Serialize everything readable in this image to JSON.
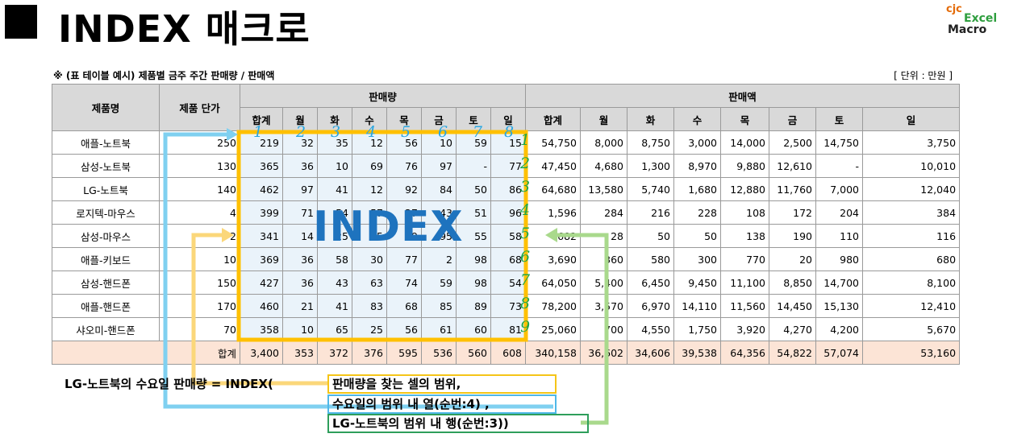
{
  "title": "INDEX 매크로",
  "logo": {
    "cjc": "cjc",
    "excel": "Excel",
    "macro": "Macro"
  },
  "caption": "※ (표 테이블 예시) 제품별 금주 주간 판매량 / 판매액",
  "unit": "[ 단위 : 만원 ]",
  "headers": {
    "product": "제품명",
    "price": "제품 단가",
    "qty_group": "판매량",
    "amt_group": "판매액",
    "qty_cols": [
      "합계",
      "월",
      "화",
      "수",
      "목",
      "금",
      "토",
      "일"
    ],
    "amt_cols": [
      "합계",
      "월",
      "화",
      "수",
      "목",
      "금",
      "토",
      "일"
    ]
  },
  "rows": [
    {
      "name": "애플-노트북",
      "price": "250",
      "qty": [
        "219",
        "32",
        "35",
        "12",
        "56",
        "10",
        "59",
        "15"
      ],
      "amt": [
        "54,750",
        "8,000",
        "8,750",
        "3,000",
        "14,000",
        "2,500",
        "14,750",
        "3,750"
      ]
    },
    {
      "name": "삼성-노트북",
      "price": "130",
      "qty": [
        "365",
        "36",
        "10",
        "69",
        "76",
        "97",
        "-",
        "77"
      ],
      "amt": [
        "47,450",
        "4,680",
        "1,300",
        "8,970",
        "9,880",
        "12,610",
        "-",
        "10,010"
      ]
    },
    {
      "name": "LG-노트북",
      "price": "140",
      "qty": [
        "462",
        "97",
        "41",
        "12",
        "92",
        "84",
        "50",
        "86"
      ],
      "amt": [
        "64,680",
        "13,580",
        "5,740",
        "1,680",
        "12,880",
        "11,760",
        "7,000",
        "12,040"
      ]
    },
    {
      "name": "로지텍-마우스",
      "price": "4",
      "qty": [
        "399",
        "71",
        "54",
        "57",
        "27",
        "43",
        "51",
        "96"
      ],
      "amt": [
        "1,596",
        "284",
        "216",
        "228",
        "108",
        "172",
        "204",
        "384"
      ]
    },
    {
      "name": "삼성-마우스",
      "price": "2",
      "qty": [
        "341",
        "14",
        "25",
        "25",
        "69",
        "95",
        "55",
        "58"
      ],
      "amt": [
        "682",
        "28",
        "50",
        "50",
        "138",
        "190",
        "110",
        "116"
      ]
    },
    {
      "name": "애플-키보드",
      "price": "10",
      "qty": [
        "369",
        "36",
        "58",
        "30",
        "77",
        "2",
        "98",
        "68"
      ],
      "amt": [
        "3,690",
        "360",
        "580",
        "300",
        "770",
        "20",
        "980",
        "680"
      ]
    },
    {
      "name": "삼성-핸드폰",
      "price": "150",
      "qty": [
        "427",
        "36",
        "43",
        "63",
        "74",
        "59",
        "98",
        "54"
      ],
      "amt": [
        "64,050",
        "5,400",
        "6,450",
        "9,450",
        "11,100",
        "8,850",
        "14,700",
        "8,100"
      ]
    },
    {
      "name": "애플-핸드폰",
      "price": "170",
      "qty": [
        "460",
        "21",
        "41",
        "83",
        "68",
        "85",
        "89",
        "73"
      ],
      "amt": [
        "78,200",
        "3,570",
        "6,970",
        "14,110",
        "11,560",
        "14,450",
        "15,130",
        "12,410"
      ]
    },
    {
      "name": "샤오미-핸드폰",
      "price": "70",
      "qty": [
        "358",
        "10",
        "65",
        "25",
        "56",
        "61",
        "60",
        "81"
      ],
      "amt": [
        "25,060",
        "700",
        "4,550",
        "1,750",
        "3,920",
        "4,270",
        "4,200",
        "5,670"
      ]
    }
  ],
  "total": {
    "label": "합계",
    "qty": [
      "3,400",
      "353",
      "372",
      "376",
      "595",
      "536",
      "560",
      "608"
    ],
    "amt": [
      "340,158",
      "36,602",
      "34,606",
      "39,538",
      "64,356",
      "54,822",
      "57,074",
      "53,160"
    ]
  },
  "col_numbers": [
    "1",
    "2",
    "3",
    "4",
    "5",
    "6",
    "7",
    "8"
  ],
  "row_numbers": [
    "1",
    "2",
    "3",
    "4",
    "5",
    "6",
    "7",
    "8",
    "9"
  ],
  "overlay_label": "INDEX",
  "formula": {
    "lhs": "LG-노트북의 수요일 판매량 = INDEX(",
    "arg1": "판매량을 찾는 셀의 범위,",
    "arg2": "수요일의 범위 내 열(순번:4) ,",
    "arg3": "LG-노트북의 범위 내 행(순번:3))"
  },
  "colors": {
    "header_bg": "#d9d9d9",
    "qty_bg": "#eaf3fa",
    "total_bg": "#fce4d6",
    "range_border": "#ffc000",
    "col_arrow": "#7fd0f0",
    "row_arrow": "#a9d98c",
    "index_text": "#1e73be"
  }
}
